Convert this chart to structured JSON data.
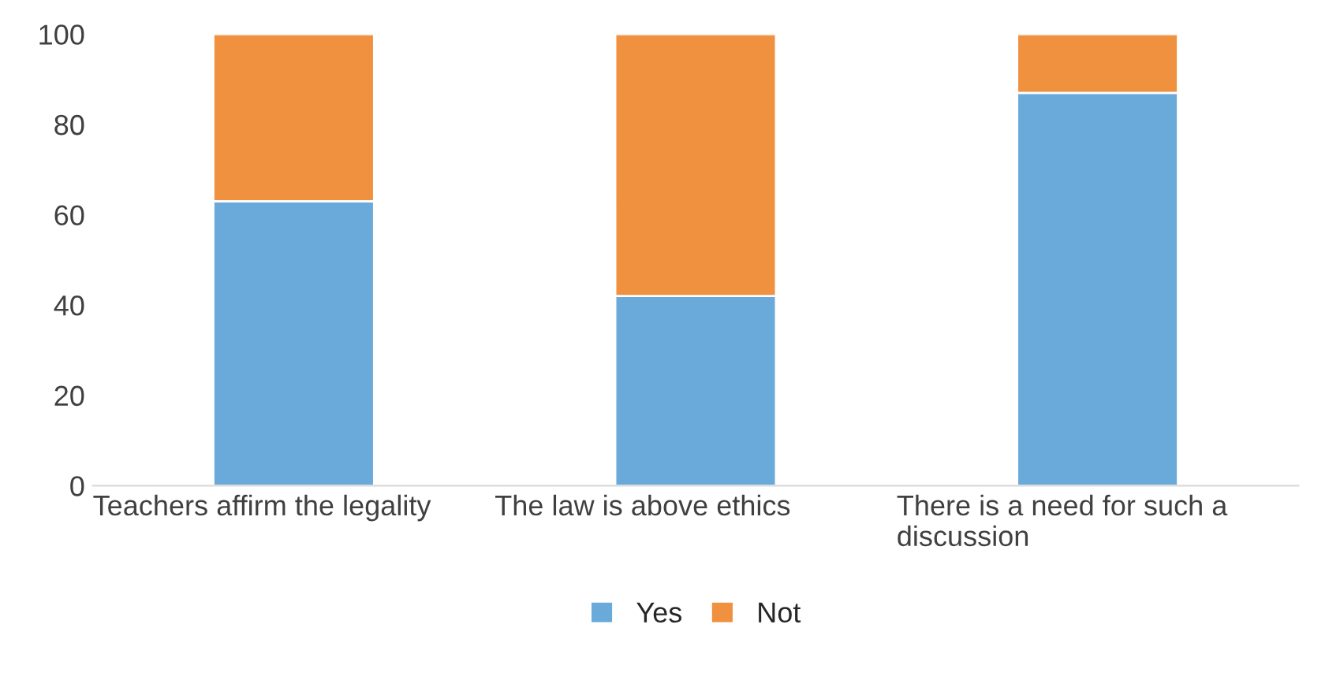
{
  "chart_data": {
    "type": "bar",
    "stacked": true,
    "categories": [
      "Teachers affirm the legality",
      "The law is above ethics",
      "There is a need for such a discussion"
    ],
    "series": [
      {
        "name": "Yes",
        "color": "#6aaadb",
        "values": [
          63,
          42,
          87
        ]
      },
      {
        "name": "Not",
        "color": "#f0913f",
        "values": [
          37,
          58,
          13
        ]
      }
    ],
    "ylim": [
      0,
      100
    ],
    "yticks": [
      0,
      20,
      40,
      60,
      80,
      100
    ],
    "grid": false,
    "legend": "bottom"
  }
}
